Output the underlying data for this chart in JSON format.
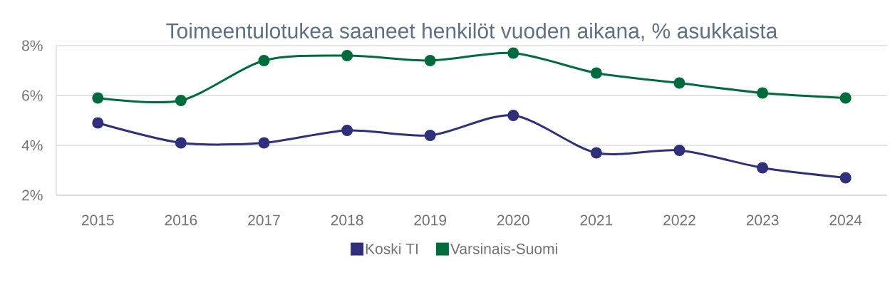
{
  "chart_data": {
    "type": "line",
    "title": "Toimeentulotukea saaneet henkilöt vuoden aikana, % asukkaista",
    "categories": [
      "2015",
      "2016",
      "2017",
      "2018",
      "2019",
      "2020",
      "2021",
      "2022",
      "2023",
      "2024"
    ],
    "series": [
      {
        "name": "Koski TI",
        "color": "#2f2f7a",
        "values": [
          4.9,
          4.1,
          4.1,
          4.6,
          4.4,
          5.2,
          3.7,
          3.8,
          3.1,
          2.7
        ]
      },
      {
        "name": "Varsinais-Suomi",
        "color": "#006b3c",
        "values": [
          5.9,
          5.8,
          7.4,
          7.6,
          7.4,
          7.7,
          6.9,
          6.5,
          6.1,
          5.9
        ]
      }
    ],
    "ylim": [
      2,
      8
    ],
    "yticks": [
      {
        "value": 2,
        "label": "2%"
      },
      {
        "value": 4,
        "label": "4%"
      },
      {
        "value": 6,
        "label": "6%"
      },
      {
        "value": 8,
        "label": "8%"
      }
    ],
    "grid": "y",
    "legend": "bottom",
    "marker": "circle",
    "line_style": "solid"
  }
}
